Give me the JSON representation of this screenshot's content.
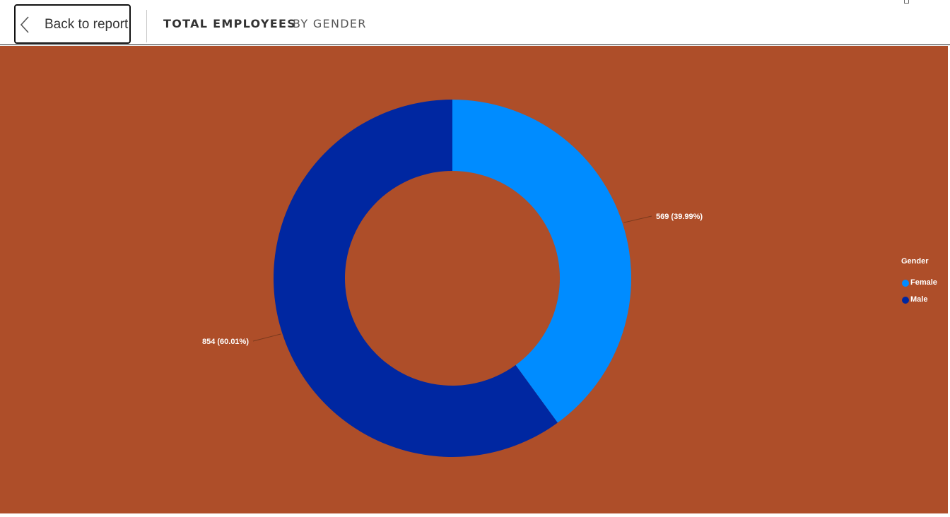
{
  "topbar": {
    "back_label": "Back to report",
    "crumb_metric": "TOTAL EMPLOYEES",
    "crumb_dimension": "BY GENDER"
  },
  "colors": {
    "background": "#ae4e29",
    "female": "#008cff",
    "male": "#0027a1",
    "leader": "#7a3a1e"
  },
  "legend": {
    "title": "Gender",
    "items": [
      {
        "label": "Female",
        "color": "#008cff"
      },
      {
        "label": "Male",
        "color": "#0027a1"
      }
    ]
  },
  "chart_data": {
    "type": "pie",
    "variant": "donut",
    "title": "",
    "legend_title": "Gender",
    "legend_position": "right",
    "categories": [
      "Female",
      "Male"
    ],
    "values": [
      569,
      854
    ],
    "data_labels": [
      "569 (39.99%)",
      "854 (60.01%)"
    ]
  }
}
